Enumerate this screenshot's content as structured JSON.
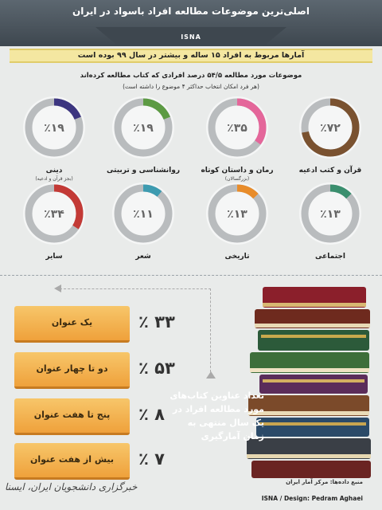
{
  "header": {
    "title": "اصلی‌ترین موضوعات مطالعه افراد باسواد در ایران",
    "agency": "ISNA"
  },
  "subtitle": "آمارها مربوط به افراد ۱۵ ساله و بیشتر در سال ۹۹ بوده است",
  "intro_line1": "موضوعات مورد مطالعه ۵۴/۵ درصد افرادی که کتاب مطالعه کرده‌اند",
  "intro_line2": "(هر فرد امکان انتخاب حداکثر ۴ موضوع را داشته است)",
  "chart_data": [
    {
      "type": "pie",
      "style": "donut",
      "items": [
        {
          "label": "قرآن و کتب ادعیه",
          "note": "",
          "value": 72,
          "display": "٪۷۲",
          "color": "#7a5230"
        },
        {
          "label": "رمان و داستان کوتاه",
          "note": "(بزرگسالان)",
          "value": 35,
          "display": "٪۳۵",
          "color": "#e4669a"
        },
        {
          "label": "روانشناسی و تربیتی",
          "note": "",
          "value": 19,
          "display": "٪۱۹",
          "color": "#5c9a43"
        },
        {
          "label": "دینی",
          "note": "(بجز قرآن و ادعیه)",
          "value": 19,
          "display": "٪۱۹",
          "color": "#3c3580"
        },
        {
          "label": "اجتماعی",
          "note": "",
          "value": 13,
          "display": "٪۱۳",
          "color": "#3a8f6e"
        },
        {
          "label": "تاریخی",
          "note": "",
          "value": 13,
          "display": "٪۱۳",
          "color": "#e88c2a"
        },
        {
          "label": "شعر",
          "note": "",
          "value": 11,
          "display": "٪۱۱",
          "color": "#3d9bb0"
        },
        {
          "label": "سایر",
          "note": "",
          "value": 34,
          "display": "٪۳۴",
          "color": "#c33a36"
        }
      ]
    },
    {
      "type": "table",
      "items": [
        {
          "label": "یک عنوان",
          "value": 33,
          "display": "٪ ۳۳"
        },
        {
          "label": "دو تا چهار عنوان",
          "value": 53,
          "display": "٪ ۵۳"
        },
        {
          "label": "پنج تا هفت عنوان",
          "value": 8,
          "display": "٪ ۸"
        },
        {
          "label": "بیش از هفت عنوان",
          "value": 7,
          "display": "٪ ۷"
        }
      ]
    }
  ],
  "description": "تعداد عناوین کتاب‌های مورد مطالعه افراد در یک سال منتهی به زمان آمارگیری",
  "source": "منبع داده‌ها: مرکز آمار ایران",
  "design": "ISNA / Design: Pedram Aghaei",
  "signature": "خبرگزاری دانشجویان ایران، ایسنا"
}
